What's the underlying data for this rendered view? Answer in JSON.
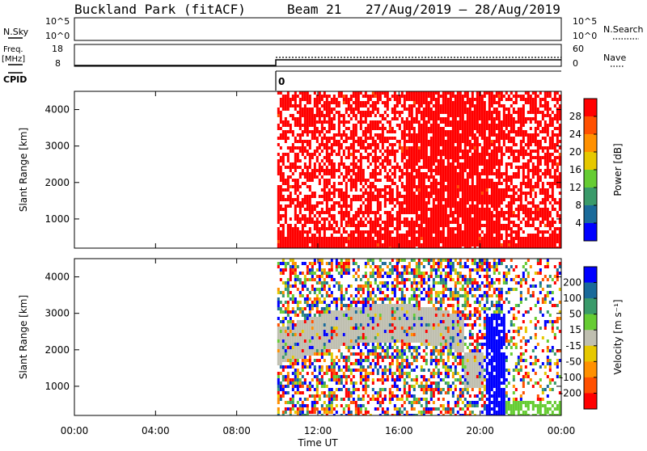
{
  "header": {
    "site": "Buckland Park (fitACF)",
    "beam": "Beam 21",
    "dates": "27/Aug/2019 – 28/Aug/2019"
  },
  "nsky_panel": {
    "label": "N.Sky",
    "left_ticks": [
      "10^5",
      "10^0"
    ],
    "right_ticks": [
      "10^5",
      "10^0"
    ],
    "right_label": "N.Search"
  },
  "freq_panel": {
    "label_line1": "Freq.",
    "label_line2": "[MHz]",
    "left_ticks": [
      "18",
      "8"
    ],
    "right_ticks": [
      "60",
      "0"
    ],
    "right_label": "Nave"
  },
  "cpid_panel": {
    "label": "CPID",
    "value": "0"
  },
  "chart_data": [
    {
      "type": "heatmap",
      "title": "Power [dB]",
      "ylabel": "Slant Range [km]",
      "ylim": [
        200,
        4500
      ],
      "yticks": [
        "1000",
        "2000",
        "3000",
        "4000"
      ],
      "colorbar_label": "Power [dB]",
      "colorbar_ticks": [
        "28",
        "24",
        "20",
        "16",
        "12",
        "8",
        "4"
      ],
      "colorbar_colors": [
        "#ff0000",
        "#ff5000",
        "#ff9000",
        "#e6c800",
        "#66cc33",
        "#3a9a6a",
        "#1a6a9a",
        "#0000ff"
      ],
      "data_start": "10:00",
      "dominant_value": "> 28 dB"
    },
    {
      "type": "heatmap",
      "title": "Velocity [m s^-1]",
      "ylabel": "Slant Range [km]",
      "ylim": [
        200,
        4500
      ],
      "yticks": [
        "1000",
        "2000",
        "3000",
        "4000"
      ],
      "colorbar_label": "Velocity [m s⁻¹]",
      "colorbar_ticks": [
        "200",
        "100",
        "50",
        "15",
        "-15",
        "-50",
        "-100",
        "-200"
      ],
      "colorbar_colors": [
        "#0000ff",
        "#1a6a9a",
        "#3a9a6a",
        "#66cc33",
        "#bfbfb0",
        "#e6c800",
        "#ff9000",
        "#ff5000",
        "#ff0000"
      ],
      "data_start": "10:00"
    }
  ],
  "time_axis": {
    "xlabel": "Time UT",
    "ticks": [
      "00:00",
      "04:00",
      "08:00",
      "12:00",
      "16:00",
      "20:00",
      "00:00"
    ]
  }
}
